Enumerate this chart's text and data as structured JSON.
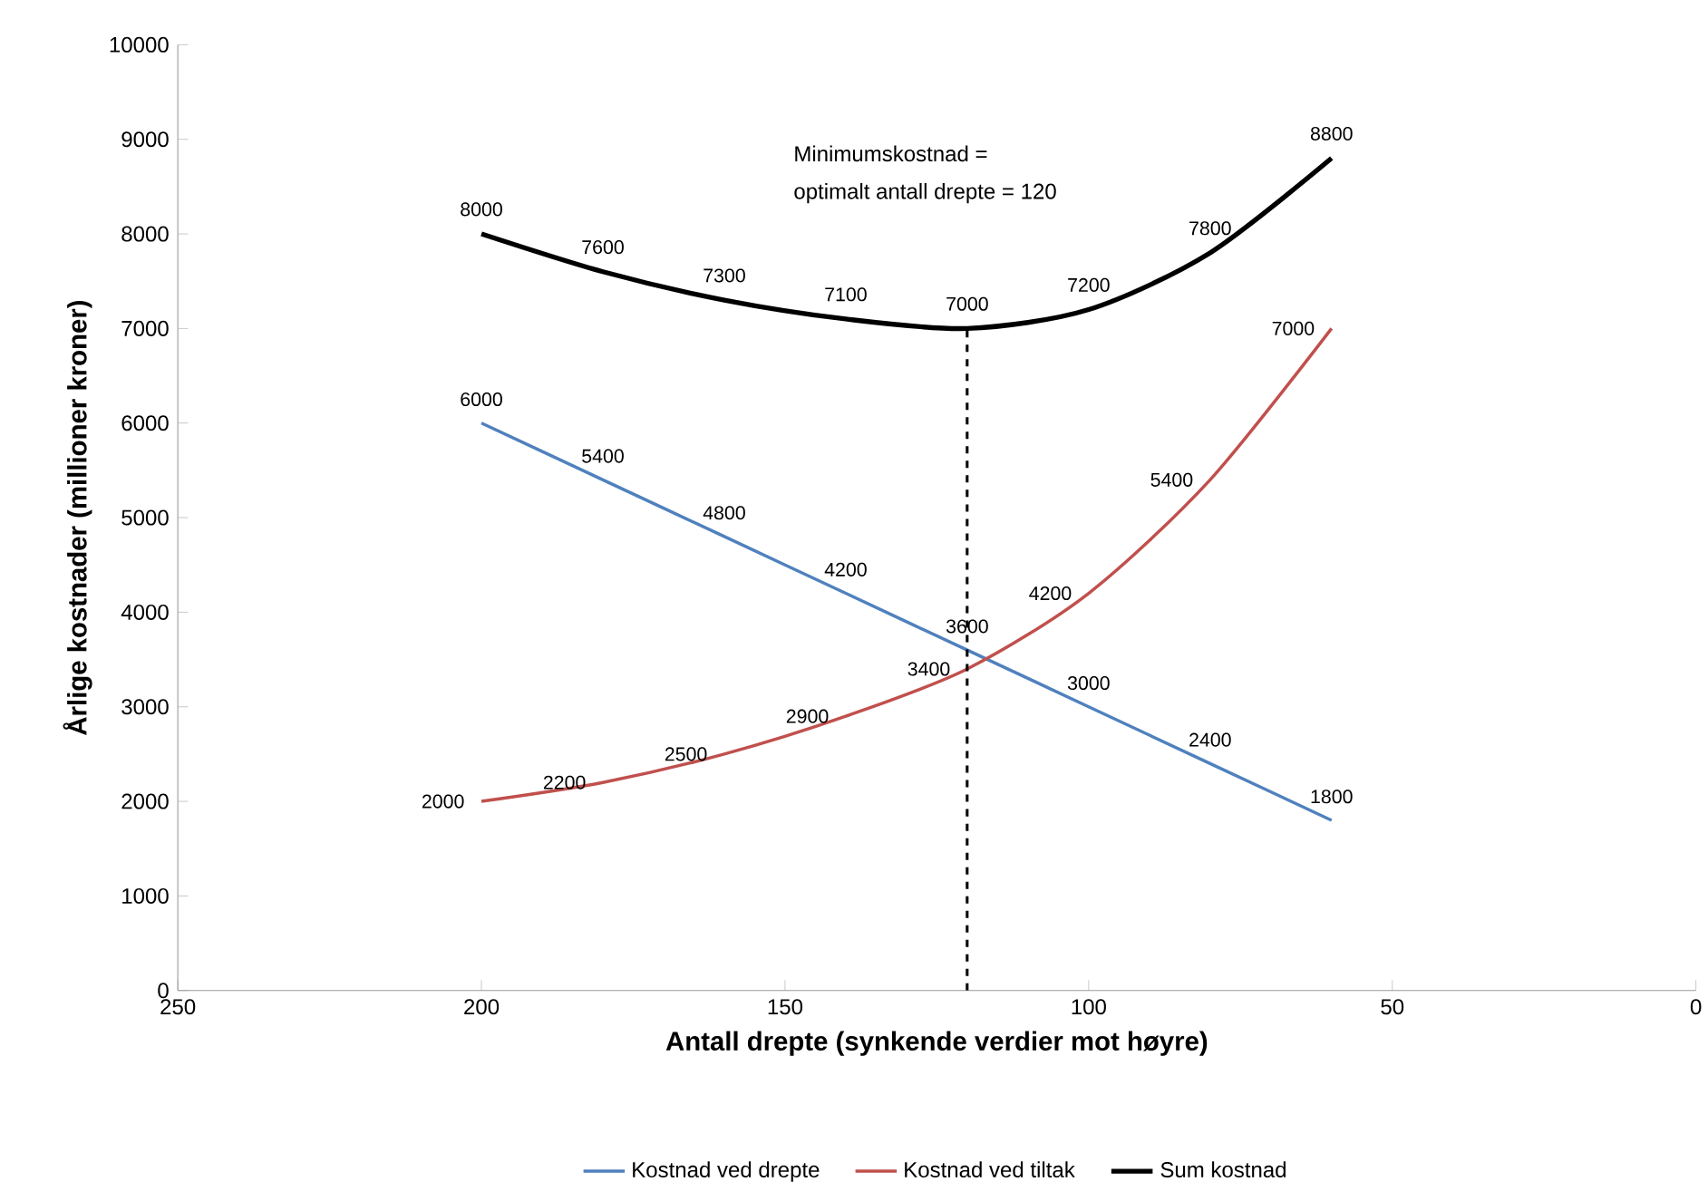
{
  "chart_data": {
    "type": "line",
    "x": [
      200,
      180,
      160,
      140,
      120,
      100,
      80,
      60
    ],
    "series": [
      {
        "name": "Kostnad ved drepte",
        "color": "#4f81bd",
        "values": [
          6000,
          5400,
          4800,
          4200,
          3600,
          3000,
          2400,
          1800
        ]
      },
      {
        "name": "Kostnad ved tiltak",
        "color": "#c0504d",
        "values": [
          2000,
          2200,
          2500,
          2900,
          3400,
          4200,
          5400,
          7000
        ]
      },
      {
        "name": "Sum kostnad",
        "color": "#000000",
        "values": [
          8000,
          7600,
          7300,
          7100,
          7000,
          7200,
          7800,
          8800
        ]
      }
    ],
    "xlabel": "Antall drepte (synkende verdier mot høyre)",
    "ylabel": "Årlige kostnader (millioner kroner)",
    "xlim": [
      250,
      0
    ],
    "xticks": [
      250,
      200,
      150,
      100,
      50,
      0
    ],
    "ylim": [
      0,
      10000
    ],
    "yticks": [
      0,
      1000,
      2000,
      3000,
      4000,
      5000,
      6000,
      7000,
      8000,
      9000,
      10000
    ],
    "ref_lines": [
      {
        "axis": "x",
        "value": 120,
        "color": "#000000",
        "line_style": "dashed"
      }
    ],
    "annotations": [
      "Minimumskostnad =",
      "optimalt antall drepte = 120"
    ],
    "data_labels": true,
    "legend": "bottom",
    "grid": false,
    "marker": "none",
    "line_style": "solid"
  }
}
